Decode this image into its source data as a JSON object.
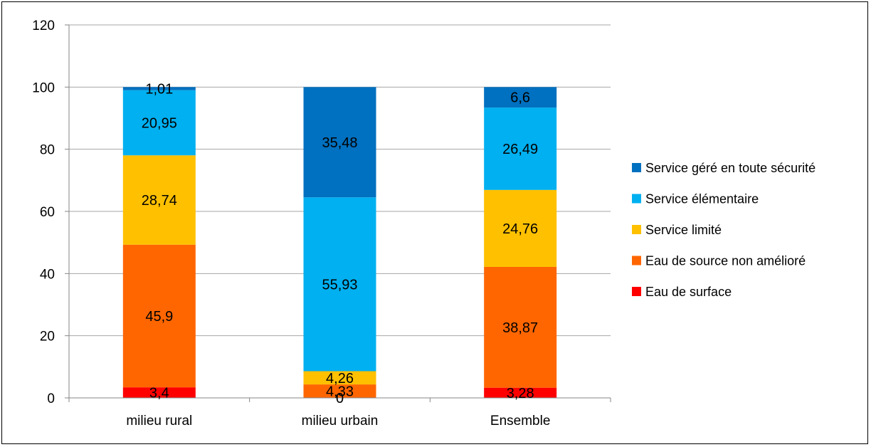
{
  "chart_data": {
    "type": "bar",
    "stacked": true,
    "categories": [
      "milieu rural",
      "milieu urbain",
      "Ensemble"
    ],
    "ylim": [
      0,
      120
    ],
    "yticks": [
      0,
      20,
      40,
      60,
      80,
      100,
      120
    ],
    "grid": true,
    "legend_position": "right",
    "series": [
      {
        "name": "Eau de surface",
        "color": "#ff0000",
        "values": [
          3.4,
          0,
          3.28
        ],
        "labels": [
          "3,4",
          "0",
          "3,28"
        ]
      },
      {
        "name": "Eau de source non amélioré",
        "color": "#ff6600",
        "values": [
          45.9,
          4.33,
          38.87
        ],
        "labels": [
          "45,9",
          "4,33",
          "38,87"
        ]
      },
      {
        "name": "Service limité",
        "color": "#ffc000",
        "values": [
          28.74,
          4.26,
          24.76
        ],
        "labels": [
          "28,74",
          "4,26",
          "24,76"
        ]
      },
      {
        "name": "Service élémentaire",
        "color": "#00b0f0",
        "values": [
          20.95,
          55.93,
          26.49
        ],
        "labels": [
          "20,95",
          "55,93",
          "26,49"
        ]
      },
      {
        "name": "Service géré en toute sécurité",
        "color": "#0070c0",
        "values": [
          1.01,
          35.48,
          6.6
        ],
        "labels": [
          "1,01",
          "35,48",
          "6,6"
        ]
      }
    ]
  }
}
